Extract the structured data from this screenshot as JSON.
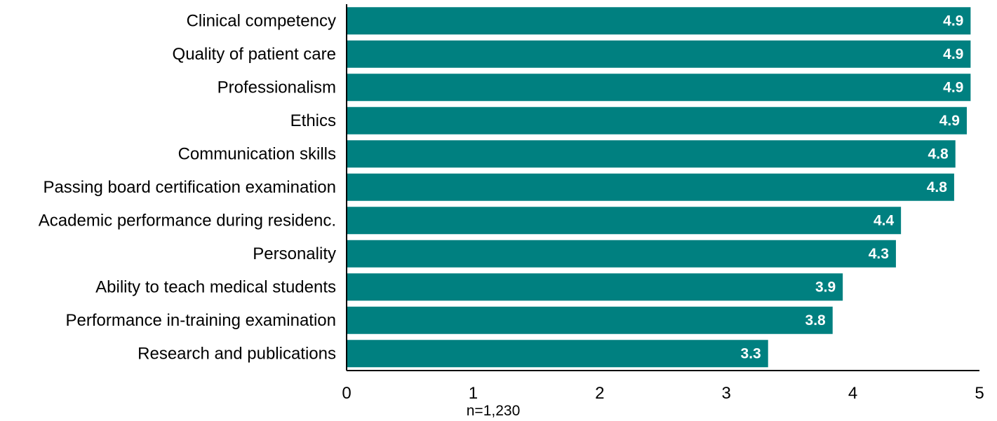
{
  "chart_data": {
    "type": "bar",
    "orientation": "horizontal",
    "categories": [
      "Clinical competency",
      "Quality of patient care",
      "Professionalism",
      "Ethics ",
      "Communication skills",
      "Passing board certification examination",
      "Academic performance during residenc.",
      "Personality ",
      "Ability to teach medical students",
      "Performance in-training examination",
      "Research and publications"
    ],
    "values": [
      4.93,
      4.93,
      4.93,
      4.9,
      4.81,
      4.8,
      4.38,
      4.34,
      3.92,
      3.84,
      3.33
    ],
    "data_labels": [
      "4.9",
      "4.9",
      "4.9",
      "4.9",
      "4.8",
      "4.8",
      "4.4",
      "4.3",
      "3.9",
      "3.8",
      "3.3"
    ],
    "title": "",
    "xlabel": "",
    "ylabel": "",
    "xlim": [
      0,
      5
    ],
    "x_ticks": [
      "0",
      "1",
      "2",
      "3",
      "4",
      "5"
    ],
    "grid": false,
    "legend": "none",
    "bar_color": "#008080",
    "label_color": "#ffffff"
  },
  "footnote": "n=1,230"
}
